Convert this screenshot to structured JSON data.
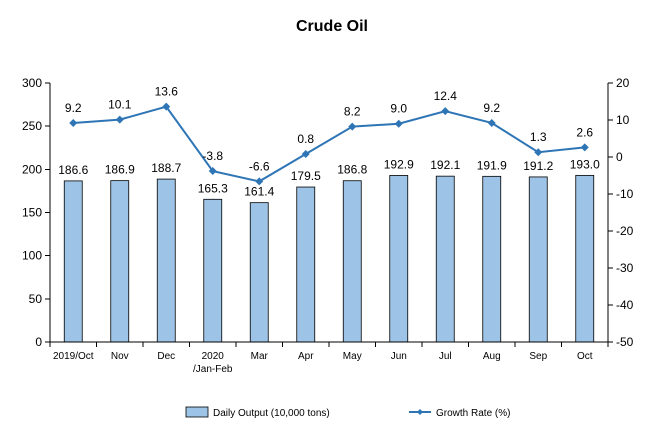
{
  "chart_data": {
    "type": "bar",
    "title": "Crude Oil",
    "categories": [
      [
        "2019/Oct"
      ],
      [
        "Nov"
      ],
      [
        "Dec"
      ],
      [
        "2020",
        "/Jan-Feb"
      ],
      [
        "Mar"
      ],
      [
        "Apr"
      ],
      [
        "May"
      ],
      [
        "Jun"
      ],
      [
        "Jul"
      ],
      [
        "Aug"
      ],
      [
        "Sep"
      ],
      [
        "Oct"
      ]
    ],
    "series": [
      {
        "name": "Daily Output (10,000 tons)",
        "type": "bar",
        "axis": "left",
        "values": [
          186.6,
          186.9,
          188.7,
          165.3,
          161.4,
          179.5,
          186.8,
          192.9,
          192.1,
          191.9,
          191.2,
          193.0
        ],
        "labels": [
          "186.6",
          "186.9",
          "188.7",
          "165.3",
          "161.4",
          "179.5",
          "186.8",
          "192.9",
          "192.1",
          "191.9",
          "191.2",
          "193.0"
        ],
        "color": "#9dc3e6"
      },
      {
        "name": "Growth Rate (%)",
        "type": "line",
        "axis": "right",
        "values": [
          9.2,
          10.1,
          13.6,
          -3.8,
          -6.6,
          0.8,
          8.2,
          9.0,
          12.4,
          9.2,
          1.3,
          2.6
        ],
        "labels": [
          "9.2",
          "10.1",
          "13.6",
          "-3.8",
          "-6.6",
          "0.8",
          "8.2",
          "9.0",
          "12.4",
          "9.2",
          "1.3",
          "2.6"
        ],
        "color": "#2e75b6"
      }
    ],
    "y_left": {
      "ylim": [
        0,
        300
      ],
      "ticks": [
        0,
        50,
        100,
        150,
        200,
        250,
        300
      ]
    },
    "y_right": {
      "ylim": [
        -50,
        20
      ],
      "ticks": [
        -50,
        -40,
        -30,
        -20,
        -10,
        0,
        10,
        20
      ]
    },
    "grid": false,
    "legend": "bottom"
  }
}
